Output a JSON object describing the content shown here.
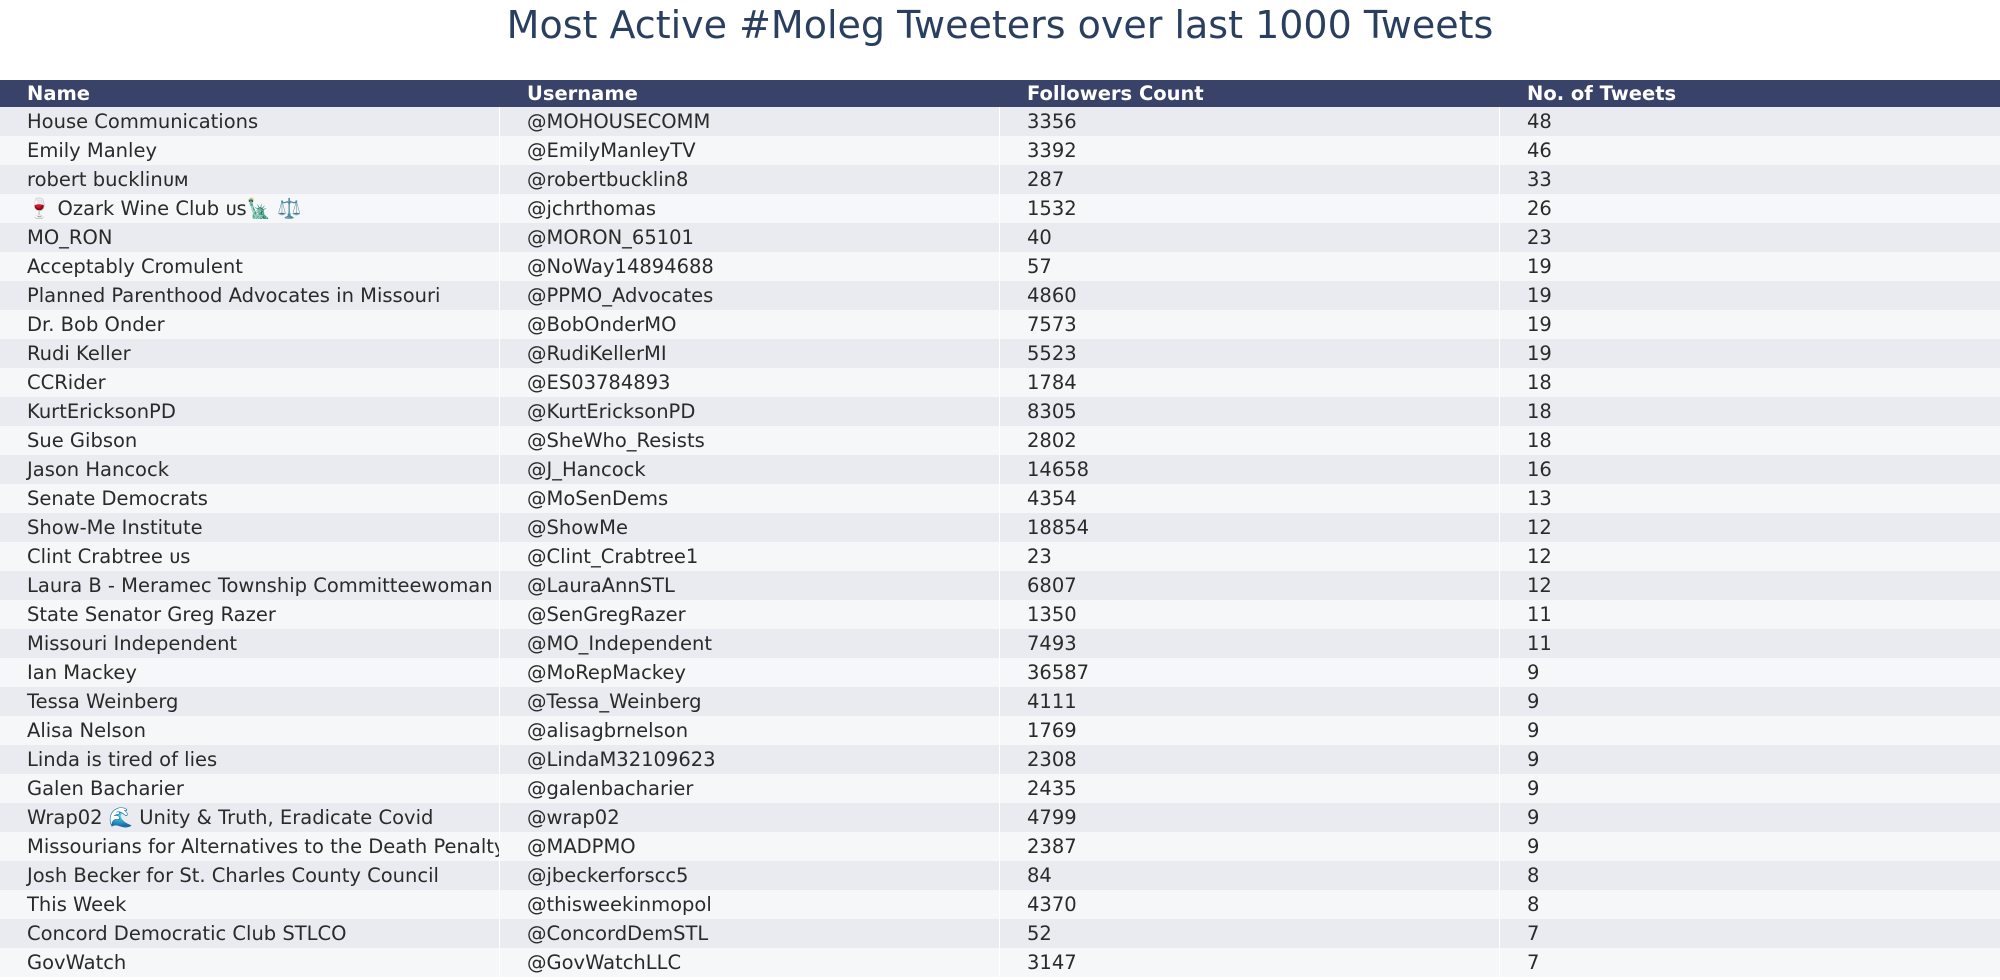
{
  "chart_data": {
    "type": "table",
    "title": "Most Active #Moleg Tweeters over last 1000 Tweets",
    "columns": [
      "Name",
      "Username",
      "Followers Count",
      "No. of Tweets"
    ],
    "rows": [
      [
        "House Communications",
        "@MOHOUSECOMM",
        "3356",
        "48"
      ],
      [
        "Emily Manley",
        "@EmilyManleyTV",
        "3392",
        "46"
      ],
      [
        "robert bucklinᴜᴍ",
        "@robertbucklin8",
        "287",
        "33"
      ],
      [
        "🍷 Ozark Wine Club ᴜs🗽 ⚖️",
        "@jchrthomas",
        "1532",
        "26"
      ],
      [
        "MO_RON",
        "@MORON_65101",
        "40",
        "23"
      ],
      [
        "Acceptably Cromulent",
        "@NoWay14894688",
        "57",
        "19"
      ],
      [
        "Planned Parenthood Advocates in Missouri",
        "@PPMO_Advocates",
        "4860",
        "19"
      ],
      [
        "Dr. Bob Onder",
        "@BobOnderMO",
        "7573",
        "19"
      ],
      [
        "Rudi Keller",
        "@RudiKellerMI",
        "5523",
        "19"
      ],
      [
        "CCRider",
        "@ES03784893",
        "1784",
        "18"
      ],
      [
        "KurtEricksonPD",
        "@KurtEricksonPD",
        "8305",
        "18"
      ],
      [
        "Sue Gibson",
        "@SheWho_Resists",
        "2802",
        "18"
      ],
      [
        "Jason Hancock",
        "@J_Hancock",
        "14658",
        "16"
      ],
      [
        "Senate Democrats",
        "@MoSenDems",
        "4354",
        "13"
      ],
      [
        "Show-Me Institute",
        "@ShowMe",
        "18854",
        "12"
      ],
      [
        "Clint Crabtree ᴜs",
        "@Clint_Crabtree1",
        "23",
        "12"
      ],
      [
        "Laura B - Meramec Township Committeewoman",
        "@LauraAnnSTL",
        "6807",
        "12"
      ],
      [
        "State Senator Greg Razer",
        "@SenGregRazer",
        "1350",
        "11"
      ],
      [
        "Missouri Independent",
        "@MO_Independent",
        "7493",
        "11"
      ],
      [
        "Ian Mackey",
        "@MoRepMackey",
        "36587",
        "9"
      ],
      [
        "Tessa Weinberg",
        "@Tessa_Weinberg",
        "4111",
        "9"
      ],
      [
        "Alisa Nelson",
        "@alisagbrnelson",
        "1769",
        "9"
      ],
      [
        "Linda is tired of lies",
        "@LindaM32109623",
        "2308",
        "9"
      ],
      [
        "Galen Bacharier",
        "@galenbacharier",
        "2435",
        "9"
      ],
      [
        "Wrap02 🌊 Unity & Truth, Eradicate Covid",
        "@wrap02",
        "4799",
        "9"
      ],
      [
        "Missourians for Alternatives to the Death Penalty",
        "@MADPMO",
        "2387",
        "9"
      ],
      [
        "Josh Becker for St. Charles County Council",
        "@jbeckerforscc5",
        "84",
        "8"
      ],
      [
        "This Week",
        "@thisweekinmopol",
        "4370",
        "8"
      ],
      [
        "Concord Democratic Club STLCO",
        "@ConcordDemSTL",
        "52",
        "7"
      ],
      [
        "GovWatch",
        "@GovWatchLLC",
        "3147",
        "7"
      ]
    ]
  },
  "colors": {
    "header_bg": "#39436a",
    "header_text": "#ffffff",
    "row_odd_bg": "#e9ebf1",
    "row_even_bg": "#f6f7f9",
    "title_color": "#2a3f5f"
  }
}
